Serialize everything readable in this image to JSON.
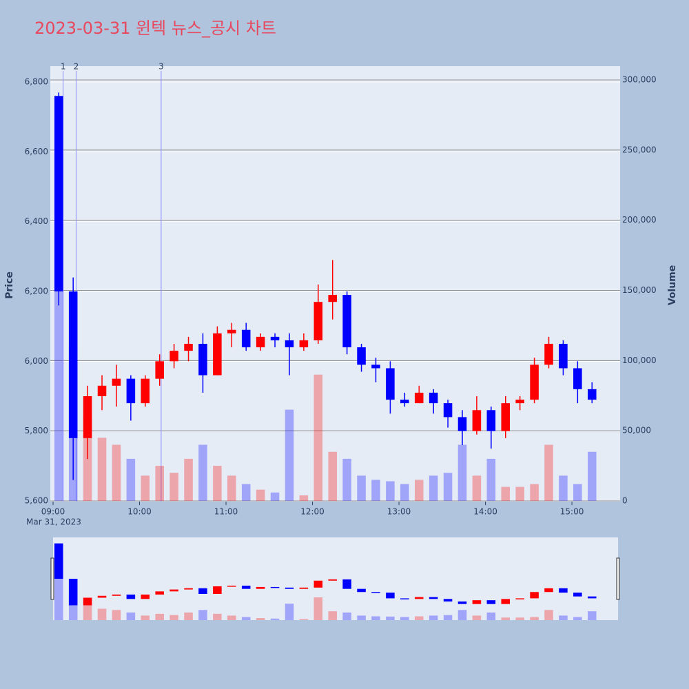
{
  "chart_data": {
    "type": "candlestick",
    "title": "2023-03-31 윈텍 뉴스_공시 차트",
    "ylabel": "Price",
    "y2label": "Volume",
    "xdate": "Mar 31, 2023",
    "x": [
      "09:00",
      "09:10",
      "09:20",
      "09:30",
      "09:40",
      "09:50",
      "10:00",
      "10:10",
      "10:20",
      "10:30",
      "10:40",
      "10:50",
      "11:00",
      "11:10",
      "11:20",
      "11:30",
      "11:40",
      "11:50",
      "12:00",
      "12:10",
      "12:20",
      "12:30",
      "12:40",
      "12:50",
      "13:00",
      "13:10",
      "13:20",
      "13:30",
      "13:40",
      "13:50",
      "14:00",
      "14:10",
      "14:20",
      "14:30",
      "14:40",
      "14:50",
      "15:00",
      "15:10"
    ],
    "open": [
      6760,
      6200,
      5780,
      5900,
      5930,
      5950,
      5880,
      5950,
      6000,
      6030,
      6050,
      5960,
      6080,
      6090,
      6040,
      6070,
      6060,
      6040,
      6060,
      6170,
      6190,
      6040,
      5990,
      5980,
      5890,
      5880,
      5910,
      5880,
      5840,
      5800,
      5860,
      5800,
      5880,
      5890,
      5990,
      6050,
      5980,
      5920
    ],
    "high": [
      6770,
      6240,
      5930,
      5960,
      5990,
      5960,
      5960,
      6020,
      6050,
      6070,
      6080,
      6100,
      6110,
      6110,
      6080,
      6080,
      6080,
      6080,
      6220,
      6290,
      6200,
      6050,
      6010,
      6000,
      5910,
      5930,
      5920,
      5890,
      5860,
      5900,
      5870,
      5900,
      5900,
      6010,
      6070,
      6060,
      6000,
      5940
    ],
    "low": [
      6160,
      5660,
      5720,
      5860,
      5870,
      5830,
      5870,
      5930,
      5980,
      6000,
      5910,
      5960,
      6040,
      6030,
      6030,
      6040,
      5960,
      6030,
      6050,
      6120,
      6020,
      5970,
      5940,
      5850,
      5870,
      5880,
      5850,
      5810,
      5760,
      5790,
      5750,
      5780,
      5860,
      5880,
      5980,
      5960,
      5880,
      5880
    ],
    "close": [
      6200,
      5780,
      5900,
      5930,
      5950,
      5880,
      5950,
      6000,
      6030,
      6050,
      5960,
      6080,
      6090,
      6040,
      6070,
      6060,
      6040,
      6060,
      6170,
      6190,
      6040,
      5990,
      5980,
      5890,
      5880,
      5910,
      5880,
      5840,
      5800,
      5860,
      5800,
      5880,
      5890,
      5990,
      6050,
      5980,
      5920,
      5890
    ],
    "volume": [
      260000,
      110000,
      60000,
      45000,
      40000,
      30000,
      18000,
      25000,
      20000,
      30000,
      40000,
      25000,
      18000,
      12000,
      8000,
      6000,
      65000,
      4000,
      90000,
      35000,
      30000,
      18000,
      15000,
      14000,
      12000,
      15000,
      18000,
      20000,
      40000,
      18000,
      30000,
      10000,
      10000,
      12000,
      40000,
      18000,
      12000,
      35000
    ],
    "up_color": "#ff0000",
    "down_color": "#0000ff",
    "xticks": [
      "09:00",
      "10:00",
      "11:00",
      "12:00",
      "13:00",
      "14:00",
      "15:00"
    ],
    "xlim": [
      "09:00",
      "15:32"
    ],
    "ylim": [
      5600,
      6800
    ],
    "yticks": [
      {
        "value": 5600,
        "label": "5,600"
      },
      {
        "value": 5800,
        "label": "5,800"
      },
      {
        "value": 6000,
        "label": "6,000"
      },
      {
        "value": 6200,
        "label": "6,200"
      },
      {
        "value": 6400,
        "label": "6,400"
      },
      {
        "value": 6600,
        "label": "6,600"
      },
      {
        "value": 6800,
        "label": "6,800"
      }
    ],
    "y2lim": [
      0,
      300000
    ],
    "y2ticks": [
      0,
      {
        "value": 50000,
        "label": "50,000"
      },
      {
        "value": 100000,
        "label": "100,000"
      },
      {
        "value": 150000,
        "label": "150,000"
      },
      {
        "value": 200000,
        "label": "200,000"
      },
      {
        "value": 250000,
        "label": "250,000"
      },
      {
        "value": 300000,
        "label": "300,000"
      }
    ],
    "news": [
      {
        "label": "1",
        "x": "09:07"
      },
      {
        "label": "2",
        "x": "09:16"
      },
      {
        "label": "3",
        "x": "10:15"
      }
    ],
    "grid": true
  }
}
